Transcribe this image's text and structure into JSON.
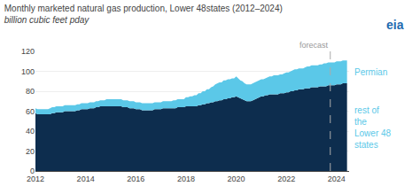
{
  "chart_data": {
    "type": "area",
    "stacked": true,
    "title": "Monthly marketed natural gas production, Lower 48​states (2012–2024)",
    "subtitle": "billion cubic feet p​day",
    "x": [
      2012.0,
      2012.083,
      2012.167,
      2012.25,
      2012.333,
      2012.417,
      2012.5,
      2012.583,
      2012.667,
      2012.75,
      2012.833,
      2012.917,
      2013.0,
      2013.083,
      2013.167,
      2013.25,
      2013.333,
      2013.417,
      2013.5,
      2013.583,
      2013.667,
      2013.75,
      2013.833,
      2013.917,
      2014.0,
      2014.083,
      2014.167,
      2014.25,
      2014.333,
      2014.417,
      2014.5,
      2014.583,
      2014.667,
      2014.75,
      2014.833,
      2014.917,
      2015.0,
      2015.083,
      2015.167,
      2015.25,
      2015.333,
      2015.417,
      2015.5,
      2015.583,
      2015.667,
      2015.75,
      2015.833,
      2015.917,
      2016.0,
      2016.083,
      2016.167,
      2016.25,
      2016.333,
      2016.417,
      2016.5,
      2016.583,
      2016.667,
      2016.75,
      2016.833,
      2016.917,
      2017.0,
      2017.083,
      2017.167,
      2017.25,
      2017.333,
      2017.417,
      2017.5,
      2017.583,
      2017.667,
      2017.75,
      2017.833,
      2017.917,
      2018.0,
      2018.083,
      2018.167,
      2018.25,
      2018.333,
      2018.417,
      2018.5,
      2018.583,
      2018.667,
      2018.75,
      2018.833,
      2018.917,
      2019.0,
      2019.083,
      2019.167,
      2019.25,
      2019.333,
      2019.417,
      2019.5,
      2019.583,
      2019.667,
      2019.75,
      2019.833,
      2019.917,
      2020.0,
      2020.083,
      2020.167,
      2020.25,
      2020.333,
      2020.417,
      2020.5,
      2020.583,
      2020.667,
      2020.75,
      2020.833,
      2020.917,
      2021.0,
      2021.083,
      2021.167,
      2021.25,
      2021.333,
      2021.417,
      2021.5,
      2021.583,
      2021.667,
      2021.75,
      2021.833,
      2021.917,
      2022.0,
      2022.083,
      2022.167,
      2022.25,
      2022.333,
      2022.417,
      2022.5,
      2022.583,
      2022.667,
      2022.75,
      2022.833,
      2022.917,
      2023.0,
      2023.083,
      2023.167,
      2023.25,
      2023.333,
      2023.417,
      2023.5,
      2023.583,
      2023.667,
      2023.75,
      2023.833,
      2023.917,
      2024.0,
      2024.083,
      2024.167,
      2024.25,
      2024.333,
      2024.417
    ],
    "series": [
      {
        "name": "rest of\nthe\nLower 48\nstates",
        "color": "#0d2d4e",
        "values": [
          58,
          57,
          57,
          57,
          57,
          57,
          57,
          57,
          58,
          58,
          59,
          59,
          59,
          59,
          60,
          60,
          60,
          60,
          60,
          60,
          61,
          61,
          62,
          62,
          62,
          62,
          63,
          63,
          63,
          64,
          64,
          65,
          65,
          65,
          65,
          65,
          65,
          65,
          65,
          65,
          65,
          65,
          64,
          64,
          64,
          63,
          63,
          63,
          62,
          62,
          62,
          61,
          61,
          61,
          61,
          61,
          61,
          62,
          62,
          62,
          62,
          63,
          63,
          63,
          63,
          63,
          63,
          63,
          64,
          64,
          64,
          64,
          65,
          65,
          65,
          65,
          65,
          65,
          66,
          66,
          67,
          67,
          68,
          68,
          69,
          69,
          70,
          70,
          71,
          71,
          72,
          72,
          73,
          73,
          74,
          74,
          75,
          74,
          73,
          72,
          71,
          70,
          70,
          70,
          71,
          72,
          73,
          74,
          75,
          75,
          76,
          76,
          77,
          77,
          77,
          77,
          77,
          78,
          78,
          78,
          79,
          79,
          80,
          80,
          81,
          81,
          82,
          82,
          82,
          83,
          83,
          83,
          84,
          84,
          84,
          84,
          85,
          85,
          85,
          85,
          86,
          86,
          86,
          86,
          87,
          87,
          87,
          88,
          88,
          88
        ]
      },
      {
        "name": "Permian",
        "color": "#5bc8e8",
        "values": [
          5,
          5,
          5,
          5,
          5,
          5,
          5,
          6,
          6,
          6,
          6,
          6,
          6,
          6,
          6,
          6,
          6,
          6,
          6,
          6,
          6,
          6,
          6,
          6,
          6,
          6,
          6,
          6,
          6,
          6,
          6,
          6,
          6,
          6,
          7,
          7,
          7,
          7,
          7,
          7,
          7,
          7,
          7,
          7,
          7,
          7,
          7,
          7,
          7,
          7,
          7,
          7,
          7,
          7,
          7,
          7,
          7,
          7,
          7,
          7,
          7,
          7,
          7,
          7,
          7,
          7,
          8,
          8,
          8,
          8,
          8,
          8,
          9,
          9,
          10,
          10,
          11,
          11,
          12,
          12,
          13,
          13,
          14,
          14,
          15,
          16,
          17,
          18,
          18,
          18,
          19,
          19,
          19,
          19,
          19,
          19,
          20,
          19,
          18,
          18,
          17,
          17,
          17,
          17,
          17,
          17,
          17,
          17,
          17,
          17,
          17,
          18,
          18,
          18,
          19,
          19,
          19,
          19,
          19,
          20,
          20,
          20,
          20,
          21,
          21,
          21,
          21,
          21,
          21,
          21,
          22,
          22,
          22,
          22,
          22,
          22,
          22,
          22,
          23,
          23,
          23,
          23,
          23,
          23,
          23,
          23,
          23,
          23,
          23,
          23
        ]
      }
    ],
    "xlim": [
      2012,
      2024.5
    ],
    "xticks": [
      2012,
      2014,
      2016,
      2018,
      2020,
      2022,
      2024
    ],
    "ylim": [
      0,
      120
    ],
    "yticks": [
      0,
      20,
      40,
      60,
      80,
      100,
      120
    ],
    "grid": true,
    "annotations": [
      {
        "text": "forecast",
        "x": 2023.75
      },
      {
        "text": "eia",
        "color": "#1f6bb0"
      }
    ]
  }
}
